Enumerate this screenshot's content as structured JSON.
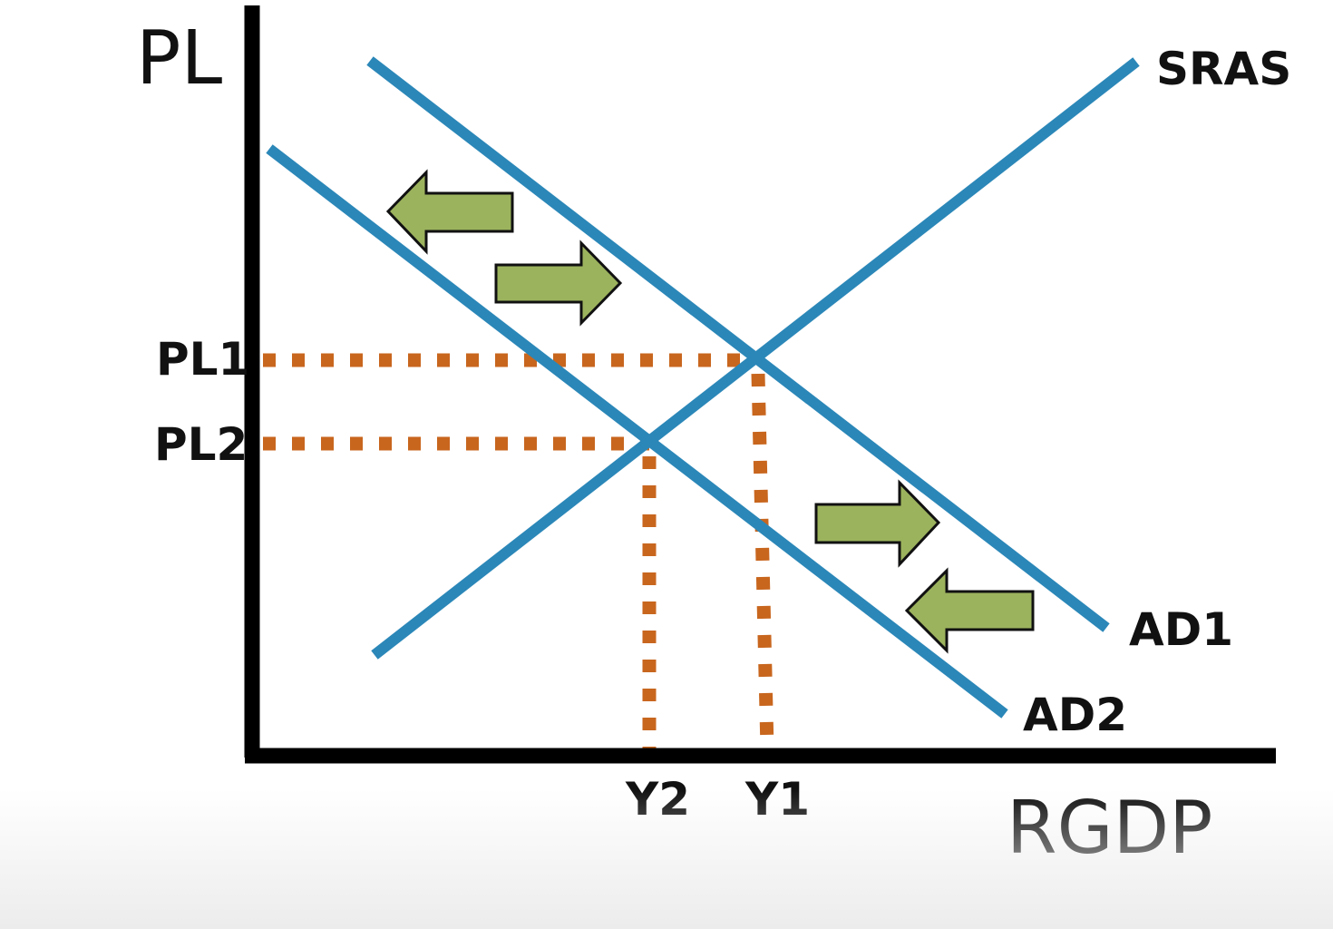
{
  "axes": {
    "y_label": "PL",
    "x_label": "RGDP"
  },
  "curves": {
    "sras": "SRAS",
    "ad1": "AD1",
    "ad2": "AD2"
  },
  "equilibrium": {
    "pl1": "PL1",
    "pl2": "PL2",
    "y1": "Y1",
    "y2": "Y2"
  },
  "colors": {
    "curve": "#2b87b8",
    "axis": "#000000",
    "guide": "#c8661e",
    "arrow_fill": "#9cb35d",
    "arrow_stroke": "#111111"
  },
  "icons": [
    "arrow-left-icon",
    "arrow-right-icon",
    "arrow-right-icon",
    "arrow-left-icon"
  ]
}
